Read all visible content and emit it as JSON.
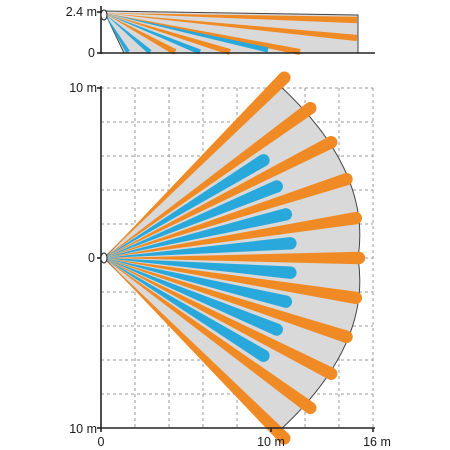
{
  "colors": {
    "coverage_fill": "#d9d9d9",
    "coverage_stroke": "#444444",
    "long_beam": "#f08a24",
    "short_beam": "#29a8dc",
    "grid": "#9a9a9a",
    "axis": "#222222"
  },
  "side_view": {
    "y_labels": [
      "2.4 m",
      "0"
    ],
    "height_m": 2.4,
    "length_m": 16
  },
  "top_view": {
    "y_labels": [
      "10 m",
      "0",
      "10 m"
    ],
    "x_labels": [
      "0",
      "10 m",
      "16 m"
    ],
    "long_beam_angles_deg": [
      -45,
      -36,
      -27,
      -18,
      -9,
      0,
      9,
      18,
      27,
      36,
      45
    ],
    "short_beam_angles_deg": [
      -31.5,
      -22.5,
      -13.5,
      -4.5,
      4.5,
      13.5,
      22.5,
      31.5
    ],
    "long_beam_reach_m": 15,
    "short_beam_reach_m": 11
  }
}
